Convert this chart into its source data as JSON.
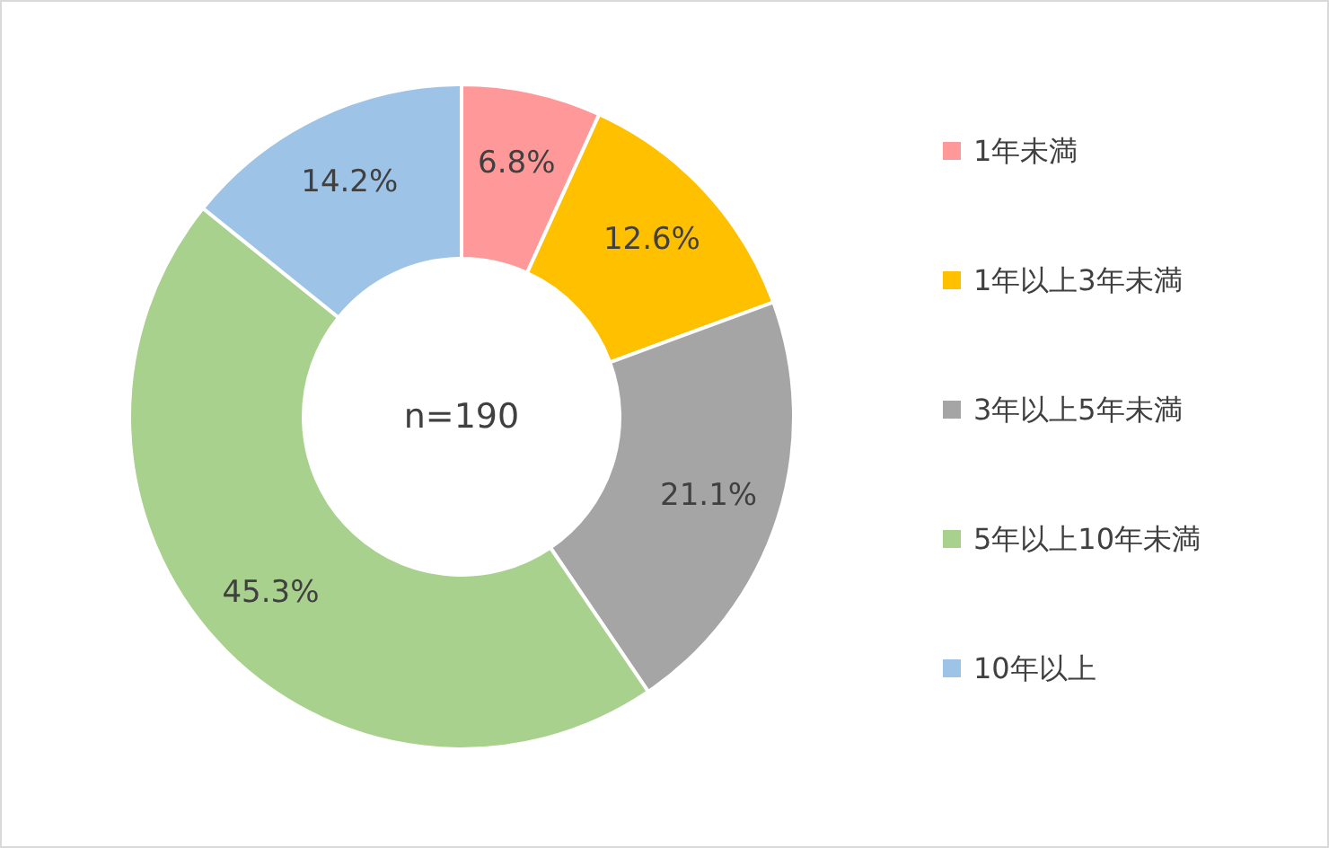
{
  "chart_data": {
    "type": "donut",
    "categories": [
      "1年未満",
      "1年以上3年未満",
      "3年以上5年未満",
      "5年以上10年未満",
      "10年以上"
    ],
    "values": [
      6.8,
      12.6,
      21.1,
      45.3,
      14.2
    ],
    "colors": [
      "#ff9999",
      "#ffc000",
      "#a5a5a5",
      "#a9d18e",
      "#9dc3e6"
    ],
    "value_labels": [
      "6.8%",
      "12.6%",
      "21.1%",
      "45.3%",
      "14.2%"
    ],
    "annotations": [
      "n=190"
    ],
    "legend": "right"
  }
}
